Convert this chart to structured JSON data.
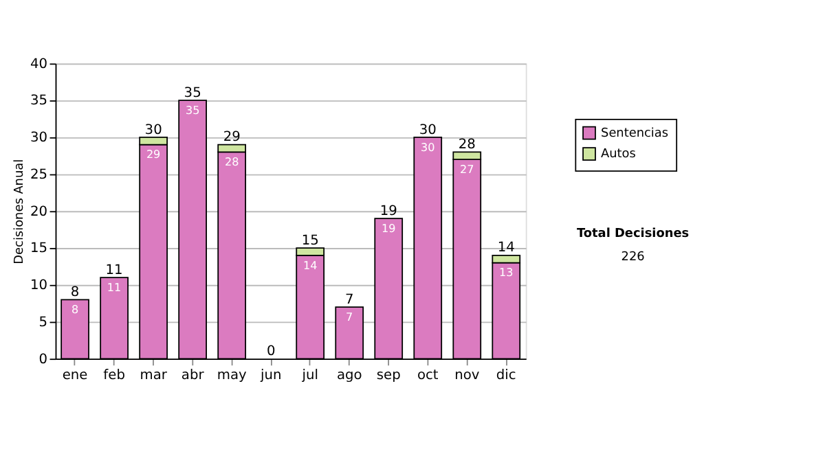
{
  "chart_data": {
    "type": "bar",
    "stacked": true,
    "ylabel": "Decisiones Anual",
    "categories": [
      "ene",
      "feb",
      "mar",
      "abr",
      "may",
      "jun",
      "jul",
      "ago",
      "sep",
      "oct",
      "nov",
      "dic"
    ],
    "series": [
      {
        "name": "Sentencias",
        "color": "#db7bc0",
        "values": [
          8,
          11,
          29,
          35,
          28,
          0,
          14,
          7,
          19,
          30,
          27,
          13
        ],
        "value_labels": [
          "8",
          "11",
          "29",
          "35",
          "28",
          null,
          "14",
          "7",
          "19",
          "30",
          "27",
          "13"
        ]
      },
      {
        "name": "Autos",
        "color": "#cfe6a0",
        "values": [
          0,
          0,
          1,
          0,
          1,
          0,
          1,
          0,
          0,
          0,
          1,
          1
        ]
      }
    ],
    "totals": [
      "8",
      "11",
      "30",
      "35",
      "29",
      "0",
      "15",
      "7",
      "19",
      "30",
      "28",
      "14"
    ],
    "ylim": [
      0,
      40
    ],
    "yticks": [
      0,
      5,
      10,
      15,
      20,
      25,
      30,
      35,
      40
    ],
    "grid": "y",
    "legend": "right",
    "annotations": [
      "Total Decisiones",
      "226"
    ]
  }
}
